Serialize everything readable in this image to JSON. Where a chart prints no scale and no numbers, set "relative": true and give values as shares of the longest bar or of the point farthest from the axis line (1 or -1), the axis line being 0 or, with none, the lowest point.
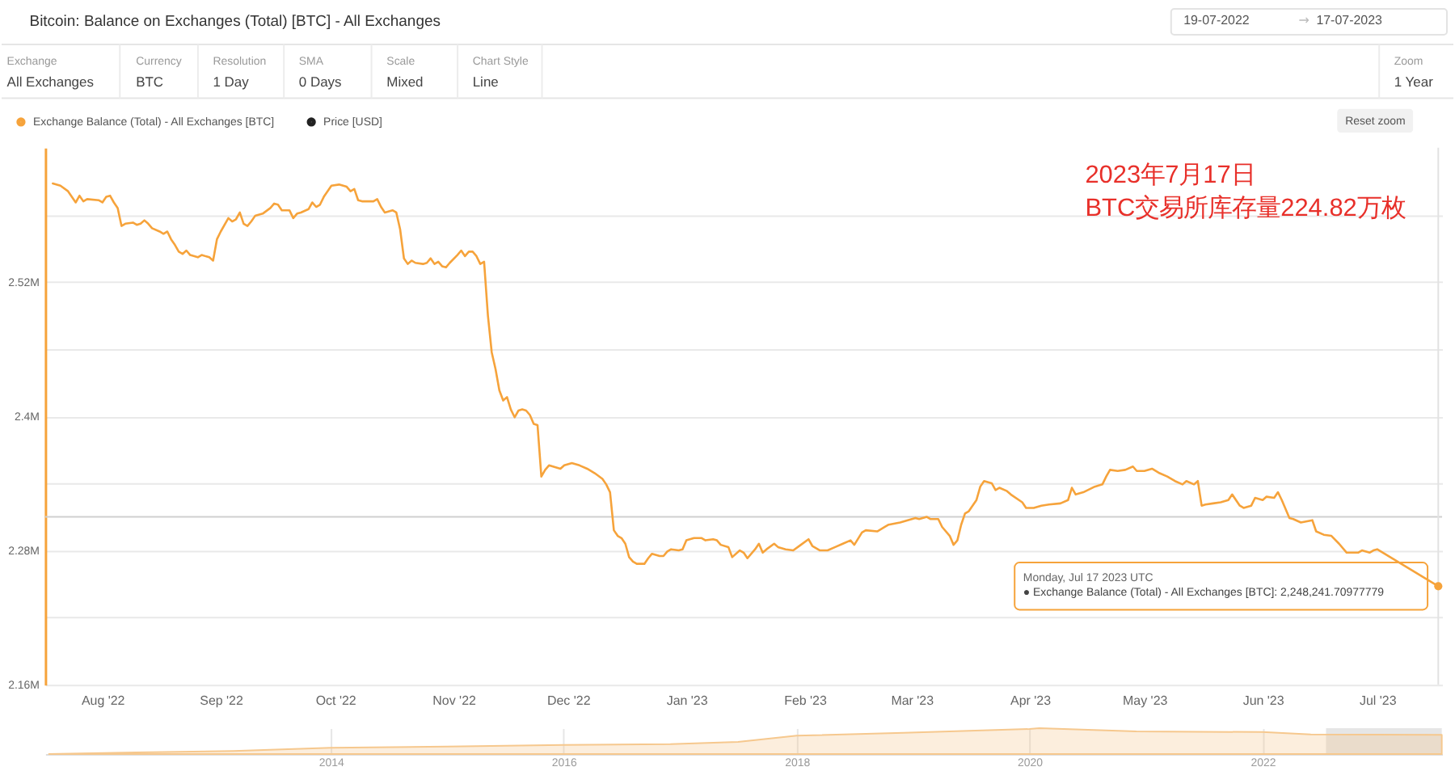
{
  "chart_data": [
    {
      "type": "line",
      "title": "Bitcoin: Balance on Exchanges (Total) [BTC] - All Exchanges",
      "series": [
        {
          "name": "Exchange Balance (Total) - All Exchanges [BTC]",
          "color": "#f6a33b",
          "x": [
            "2022-07-19",
            "2022-07-21",
            "2022-07-23",
            "2022-07-25",
            "2022-07-26",
            "2022-07-27",
            "2022-07-28",
            "2022-07-31",
            "2022-08-01",
            "2022-08-02",
            "2022-08-03",
            "2022-08-04",
            "2022-08-05",
            "2022-08-06",
            "2022-08-07",
            "2022-08-09",
            "2022-08-10",
            "2022-08-11",
            "2022-08-12",
            "2022-08-13",
            "2022-08-14",
            "2022-08-16",
            "2022-08-17",
            "2022-08-18",
            "2022-08-19",
            "2022-08-20",
            "2022-08-21",
            "2022-08-22",
            "2022-08-23",
            "2022-08-24",
            "2022-08-26",
            "2022-08-27",
            "2022-08-29",
            "2022-08-30",
            "2022-08-31",
            "2022-09-01",
            "2022-09-03",
            "2022-09-04",
            "2022-09-05",
            "2022-09-06",
            "2022-09-07",
            "2022-09-08",
            "2022-09-09",
            "2022-09-10",
            "2022-09-12",
            "2022-09-14",
            "2022-09-15",
            "2022-09-16",
            "2022-09-17",
            "2022-09-19",
            "2022-09-20",
            "2022-09-21",
            "2022-09-22",
            "2022-09-24",
            "2022-09-25",
            "2022-09-26",
            "2022-09-27",
            "2022-09-28",
            "2022-09-30",
            "2022-10-02",
            "2022-10-04",
            "2022-10-05",
            "2022-10-06",
            "2022-10-07",
            "2022-10-08",
            "2022-10-11",
            "2022-10-12",
            "2022-10-13",
            "2022-10-14",
            "2022-10-16",
            "2022-10-17",
            "2022-10-18",
            "2022-10-19",
            "2022-10-20",
            "2022-10-21",
            "2022-10-22",
            "2022-10-24",
            "2022-10-25",
            "2022-10-26",
            "2022-10-27",
            "2022-10-28",
            "2022-10-29",
            "2022-10-30",
            "2022-10-31",
            "2022-11-02",
            "2022-11-03",
            "2022-11-04",
            "2022-11-05",
            "2022-11-06",
            "2022-11-07",
            "2022-11-08",
            "2022-11-09",
            "2022-11-10",
            "2022-11-11",
            "2022-11-12",
            "2022-11-13",
            "2022-11-14",
            "2022-11-15",
            "2022-11-16",
            "2022-11-17",
            "2022-11-18",
            "2022-11-19",
            "2022-11-20",
            "2022-11-21",
            "2022-11-22",
            "2022-11-23",
            "2022-11-24",
            "2022-11-25",
            "2022-11-26",
            "2022-11-29",
            "2022-11-30",
            "2022-12-02",
            "2022-12-04",
            "2022-12-06",
            "2022-12-08",
            "2022-12-10",
            "2022-12-11",
            "2022-12-12",
            "2022-12-13",
            "2022-12-14",
            "2022-12-15",
            "2022-12-16",
            "2022-12-17",
            "2022-12-18",
            "2022-12-19",
            "2022-12-21",
            "2022-12-22",
            "2022-12-23",
            "2022-12-25",
            "2022-12-26",
            "2022-12-27",
            "2022-12-28",
            "2022-12-30",
            "2022-12-31",
            "2023-01-01",
            "2023-01-03",
            "2023-01-05",
            "2023-01-06",
            "2023-01-08",
            "2023-01-09",
            "2023-01-10",
            "2023-01-12",
            "2023-01-13",
            "2023-01-15",
            "2023-01-16",
            "2023-01-17",
            "2023-01-19",
            "2023-01-20",
            "2023-01-21",
            "2023-01-22",
            "2023-01-24",
            "2023-01-25",
            "2023-01-27",
            "2023-01-29",
            "2023-01-31",
            "2023-02-02",
            "2023-02-03",
            "2023-02-05",
            "2023-02-07",
            "2023-02-09",
            "2023-02-11",
            "2023-02-13",
            "2023-02-14",
            "2023-02-16",
            "2023-02-17",
            "2023-02-20",
            "2023-02-22",
            "2023-02-23",
            "2023-02-26",
            "2023-02-28",
            "2023-03-02",
            "2023-03-03",
            "2023-03-05",
            "2023-03-06",
            "2023-03-08",
            "2023-03-09",
            "2023-03-11",
            "2023-03-12",
            "2023-03-13",
            "2023-03-14",
            "2023-03-15",
            "2023-03-16",
            "2023-03-18",
            "2023-03-19",
            "2023-03-20",
            "2023-03-22",
            "2023-03-23",
            "2023-03-24",
            "2023-03-26",
            "2023-03-27",
            "2023-03-30",
            "2023-03-31",
            "2023-04-02",
            "2023-04-04",
            "2023-04-06",
            "2023-04-09",
            "2023-04-11",
            "2023-04-12",
            "2023-04-13",
            "2023-04-15",
            "2023-04-18",
            "2023-04-20",
            "2023-04-21",
            "2023-04-22",
            "2023-04-24",
            "2023-04-26",
            "2023-04-28",
            "2023-04-29",
            "2023-05-01",
            "2023-05-03",
            "2023-05-05",
            "2023-05-07",
            "2023-05-09",
            "2023-05-11",
            "2023-05-12",
            "2023-05-14",
            "2023-05-15",
            "2023-05-16",
            "2023-05-17",
            "2023-05-19",
            "2023-05-21",
            "2023-05-23",
            "2023-05-24",
            "2023-05-26",
            "2023-05-27",
            "2023-05-29",
            "2023-05-30",
            "2023-06-01",
            "2023-06-02",
            "2023-06-04",
            "2023-06-05",
            "2023-06-06",
            "2023-06-08",
            "2023-06-09",
            "2023-06-11",
            "2023-06-14",
            "2023-06-15",
            "2023-06-17",
            "2023-06-19",
            "2023-06-21",
            "2023-06-23",
            "2023-06-26",
            "2023-06-27",
            "2023-06-29",
            "2023-06-30",
            "2023-07-01",
            "2023-07-17"
          ],
          "values": [
            2.608,
            2.606,
            2.601,
            2.591,
            2.597,
            2.592,
            2.594,
            2.593,
            2.591,
            2.596,
            2.597,
            2.591,
            2.586,
            2.57,
            2.572,
            2.573,
            2.571,
            2.572,
            2.575,
            2.572,
            2.568,
            2.565,
            2.563,
            2.565,
            2.558,
            2.553,
            2.547,
            2.545,
            2.548,
            2.544,
            2.542,
            2.544,
            2.542,
            2.539,
            2.558,
            2.565,
            2.577,
            2.574,
            2.576,
            2.582,
            2.572,
            2.57,
            2.574,
            2.579,
            2.581,
            2.586,
            2.59,
            2.589,
            2.584,
            2.584,
            2.577,
            2.581,
            2.582,
            2.585,
            2.591,
            2.587,
            2.589,
            2.596,
            2.606,
            2.607,
            2.605,
            2.601,
            2.603,
            2.593,
            2.592,
            2.592,
            2.594,
            2.587,
            2.582,
            2.584,
            2.582,
            2.567,
            2.541,
            2.536,
            2.539,
            2.537,
            2.536,
            2.537,
            2.541,
            2.536,
            2.538,
            2.534,
            2.533,
            2.537,
            2.544,
            2.548,
            2.543,
            2.547,
            2.547,
            2.543,
            2.536,
            2.538,
            2.49,
            2.457,
            2.442,
            2.423,
            2.414,
            2.417,
            2.406,
            2.399,
            2.405,
            2.406,
            2.405,
            2.401,
            2.393,
            2.392,
            2.346,
            2.352,
            2.356,
            2.353,
            2.356,
            2.358,
            2.356,
            2.353,
            2.349,
            2.344,
            2.339,
            2.332,
            2.298,
            2.293,
            2.291,
            2.286,
            2.274,
            2.27,
            2.268,
            2.268,
            2.273,
            2.277,
            2.275,
            2.275,
            2.279,
            2.281,
            2.28,
            2.281,
            2.289,
            2.291,
            2.291,
            2.289,
            2.29,
            2.289,
            2.285,
            2.283,
            2.274,
            2.28,
            2.278,
            2.273,
            2.281,
            2.286,
            2.278,
            2.281,
            2.286,
            2.283,
            2.281,
            2.28,
            2.285,
            2.29,
            2.284,
            2.28,
            2.28,
            2.283,
            2.286,
            2.289,
            2.285,
            2.296,
            2.298,
            2.297,
            2.301,
            2.303,
            2.305,
            2.307,
            2.309,
            2.308,
            2.31,
            2.308,
            2.308,
            2.301,
            2.293,
            2.285,
            2.289,
            2.303,
            2.313,
            2.315,
            2.325,
            2.337,
            2.342,
            2.34,
            2.334,
            2.336,
            2.333,
            2.33,
            2.323,
            2.318,
            2.318,
            2.32,
            2.321,
            2.322,
            2.325,
            2.336,
            2.33,
            2.332,
            2.337,
            2.339,
            2.346,
            2.352,
            2.351,
            2.352,
            2.355,
            2.351,
            2.351,
            2.353,
            2.349,
            2.346,
            2.342,
            2.339,
            2.342,
            2.339,
            2.342,
            2.32,
            2.321,
            2.322,
            2.323,
            2.325,
            2.33,
            2.32,
            2.318,
            2.32,
            2.327,
            2.325,
            2.328,
            2.327,
            2.332,
            2.325,
            2.309,
            2.308,
            2.305,
            2.307,
            2.297,
            2.294,
            2.293,
            2.286,
            2.278,
            2.278,
            2.28,
            2.278,
            2.28,
            2.281,
            2.248
          ]
        },
        {
          "name": "Price [USD]",
          "color": "#222222"
        },
        {
          "type": "scatter",
          "color": "#f6a33b",
          "x": [
            "2023-07-17"
          ],
          "values": [
            2.248
          ]
        }
      ],
      "legend": "top left",
      "xlim": [
        "2022-07-17",
        "2023-07-18"
      ],
      "xticks": [
        {
          "value": "2022-08-01",
          "label": "Aug '22"
        },
        {
          "value": "2022-09-01",
          "label": "Sep '22"
        },
        {
          "value": "2022-10-01",
          "label": "Oct '22"
        },
        {
          "value": "2022-11-01",
          "label": "Nov '22"
        },
        {
          "value": "2022-12-01",
          "label": "Dec '22"
        },
        {
          "value": "2023-01-01",
          "label": "Jan '23"
        },
        {
          "value": "2023-02-01",
          "label": "Feb '23"
        },
        {
          "value": "2023-03-01",
          "label": "Mar '23"
        },
        {
          "value": "2023-04-01",
          "label": "Apr '23"
        },
        {
          "value": "2023-05-01",
          "label": "May '23"
        },
        {
          "value": "2023-06-01",
          "label": "Jun '23"
        },
        {
          "value": "2023-07-01",
          "label": "Jul '23"
        }
      ],
      "ylim": [
        2.16,
        2.64
      ],
      "yticks": [
        {
          "value": 2.16,
          "label": "2.16M"
        },
        {
          "value": 2.22,
          "label": null
        },
        {
          "value": 2.28,
          "label": "2.28M"
        },
        {
          "value": 2.34,
          "label": null
        },
        {
          "value": 2.4,
          "label": "2.4M"
        },
        {
          "value": 2.46,
          "label": null
        },
        {
          "value": 2.52,
          "label": "2.52M"
        },
        {
          "value": 2.58,
          "label": null
        }
      ],
      "grid": "y",
      "ref_lines": [
        {
          "axis": "y",
          "value": 2.31,
          "color": "#cfcfcf"
        },
        {
          "axis": "x",
          "value": "2023-07-17",
          "color": "#e2e2e2"
        }
      ],
      "annotations": [
        "2023年7月17日\nBTC交易所库存量224.82万枚",
        "Monday, Jul 17 2023 UTC\n● Exchange Balance (Total) - All Exchanges [BTC]: 2,248,241.70977779",
        "19-07-2022",
        "→",
        "17-07-2023",
        "Exchange",
        "All Exchanges",
        "Currency",
        "BTC",
        "Resolution",
        "1 Day",
        "SMA",
        "0 Days",
        "Scale",
        "Mixed",
        "Chart Style",
        "Line",
        "Zoom",
        "1 Year",
        "Reset zoom"
      ]
    },
    {
      "type": "area",
      "relative": true,
      "series": [
        {
          "color": "#f6c88e",
          "x": [
            "2011-08-01",
            "2012-05-01",
            "2013-03-01",
            "2014-01-01",
            "2015-01-01",
            "2016-01-01",
            "2016-12-01",
            "2017-07-01",
            "2018-01-01",
            "2018-12-01",
            "2020-01-01",
            "2020-02-01",
            "2020-12-01",
            "2022-01-01",
            "2022-06-01",
            "2023-07-17"
          ],
          "values": [
            0,
            0.06,
            0.12,
            0.24,
            0.29,
            0.35,
            0.38,
            0.47,
            0.71,
            0.82,
            0.97,
            1,
            0.88,
            0.85,
            0.76,
            0.74
          ]
        }
      ],
      "xlim": [
        "2011-07-20",
        "2023-07-18"
      ],
      "xticks": [
        {
          "value": "2014-01-01",
          "label": "2014"
        },
        {
          "value": "2016-01-01",
          "label": "2016"
        },
        {
          "value": "2018-01-01",
          "label": "2018"
        },
        {
          "value": "2020-01-01",
          "label": "2020"
        },
        {
          "value": "2022-01-01",
          "label": "2022"
        }
      ],
      "grid": "x",
      "bands": [
        {
          "axis": "x",
          "from": "2022-07-19",
          "to": "2023-07-17",
          "color": "#e6e6e6"
        }
      ]
    }
  ]
}
